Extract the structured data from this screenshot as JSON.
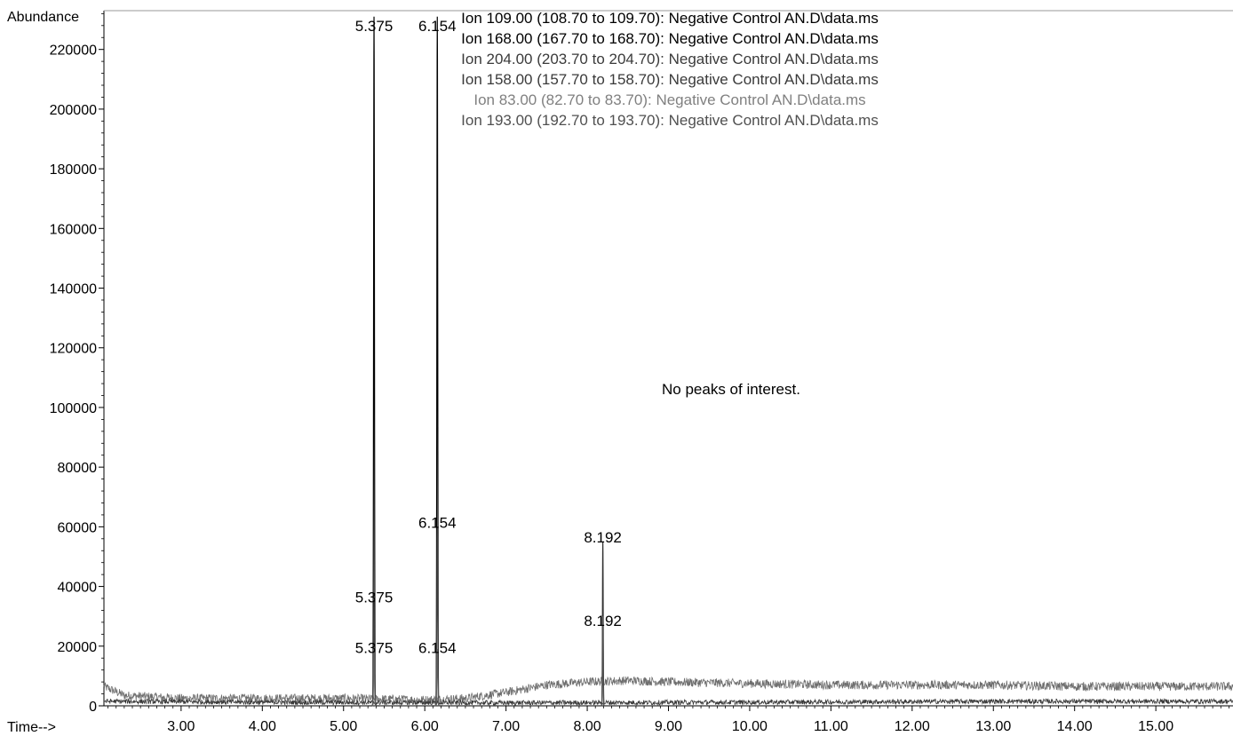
{
  "chart_data": {
    "type": "line",
    "ylabel": "Abundance",
    "xlabel": "Time-->",
    "xlim": [
      2.05,
      15.95
    ],
    "ylim": [
      0,
      233000
    ],
    "x_ticks": [
      3.0,
      4.0,
      5.0,
      6.0,
      7.0,
      8.0,
      9.0,
      10.0,
      11.0,
      12.0,
      13.0,
      14.0,
      15.0
    ],
    "x_tick_labels": [
      "3.00",
      "4.00",
      "5.00",
      "6.00",
      "7.00",
      "8.00",
      "9.00",
      "10.00",
      "11.00",
      "12.00",
      "13.00",
      "14.00",
      "15.00"
    ],
    "y_ticks": [
      0,
      20000,
      40000,
      60000,
      80000,
      100000,
      120000,
      140000,
      160000,
      180000,
      200000,
      220000
    ],
    "y_tick_labels": [
      "0",
      "20000",
      "40000",
      "60000",
      "80000",
      "100000",
      "120000",
      "140000",
      "160000",
      "180000",
      "200000",
      "220000"
    ],
    "legend": [
      {
        "text": "Ion 109.00 (108.70 to 109.70): Negative Control AN.D\\data.ms",
        "color": "#000000"
      },
      {
        "text": "Ion 168.00 (167.70 to 168.70): Negative Control AN.D\\data.ms",
        "color": "#000000"
      },
      {
        "text": "Ion 204.00 (203.70 to 204.70): Negative Control AN.D\\data.ms",
        "color": "#3a3a3a"
      },
      {
        "text": "Ion 158.00 (157.70 to 158.70): Negative Control AN.D\\data.ms",
        "color": "#3a3a3a"
      },
      {
        "text": "Ion  83.00 (82.70 to 83.70): Negative Control AN.D\\data.ms",
        "color": "#808080"
      },
      {
        "text": "Ion 193.00 (192.70 to 193.70): Negative Control AN.D\\data.ms",
        "color": "#505050"
      }
    ],
    "annotation": "No peaks of interest.",
    "peaks": [
      {
        "x": 5.375,
        "height": 231000,
        "width": 0.018,
        "color": "#000000"
      },
      {
        "x": 5.375,
        "height": 35000,
        "width": 0.02,
        "color": "#404040"
      },
      {
        "x": 5.375,
        "height": 20000,
        "width": 0.02,
        "color": "#606060"
      },
      {
        "x": 6.154,
        "height": 231000,
        "width": 0.018,
        "color": "#000000"
      },
      {
        "x": 6.154,
        "height": 60000,
        "width": 0.02,
        "color": "#404040"
      },
      {
        "x": 6.154,
        "height": 19000,
        "width": 0.02,
        "color": "#606060"
      },
      {
        "x": 8.192,
        "height": 55000,
        "width": 0.015,
        "color": "#303030"
      },
      {
        "x": 8.192,
        "height": 30000,
        "width": 0.015,
        "color": "#505050"
      }
    ],
    "peak_labels": [
      {
        "text": "5.375",
        "x": 5.375,
        "y": 228000
      },
      {
        "text": "6.154",
        "x": 6.154,
        "y": 228000
      },
      {
        "text": "5.375",
        "x": 5.375,
        "y": 36500
      },
      {
        "text": "5.375",
        "x": 5.375,
        "y": 19500
      },
      {
        "text": "6.154",
        "x": 6.154,
        "y": 61500
      },
      {
        "text": "6.154",
        "x": 6.154,
        "y": 19500
      },
      {
        "text": "8.192",
        "x": 8.192,
        "y": 56500
      },
      {
        "text": "8.192",
        "x": 8.192,
        "y": 28500
      }
    ],
    "baselines": [
      {
        "name": "Ion 83.00 trace",
        "color": "#6e6e6e",
        "points": [
          [
            2.05,
            6500
          ],
          [
            2.3,
            3500
          ],
          [
            3.0,
            2500
          ],
          [
            4.0,
            2500
          ],
          [
            5.0,
            2500
          ],
          [
            6.0,
            2000
          ],
          [
            6.5,
            2500
          ],
          [
            7.0,
            4500
          ],
          [
            7.5,
            7000
          ],
          [
            8.0,
            8000
          ],
          [
            8.5,
            8500
          ],
          [
            9.0,
            8000
          ],
          [
            10.0,
            7500
          ],
          [
            11.0,
            7000
          ],
          [
            12.0,
            7000
          ],
          [
            13.0,
            7000
          ],
          [
            14.0,
            6500
          ],
          [
            15.0,
            6500
          ],
          [
            15.95,
            6500
          ]
        ],
        "noise": 1500
      },
      {
        "name": "low-level traces",
        "color": "#3a3a3a",
        "points": [
          [
            2.05,
            1500
          ],
          [
            4.0,
            1200
          ],
          [
            7.0,
            1000
          ],
          [
            10.0,
            1200
          ],
          [
            13.0,
            1500
          ],
          [
            15.95,
            1500
          ]
        ],
        "noise": 800
      }
    ]
  }
}
